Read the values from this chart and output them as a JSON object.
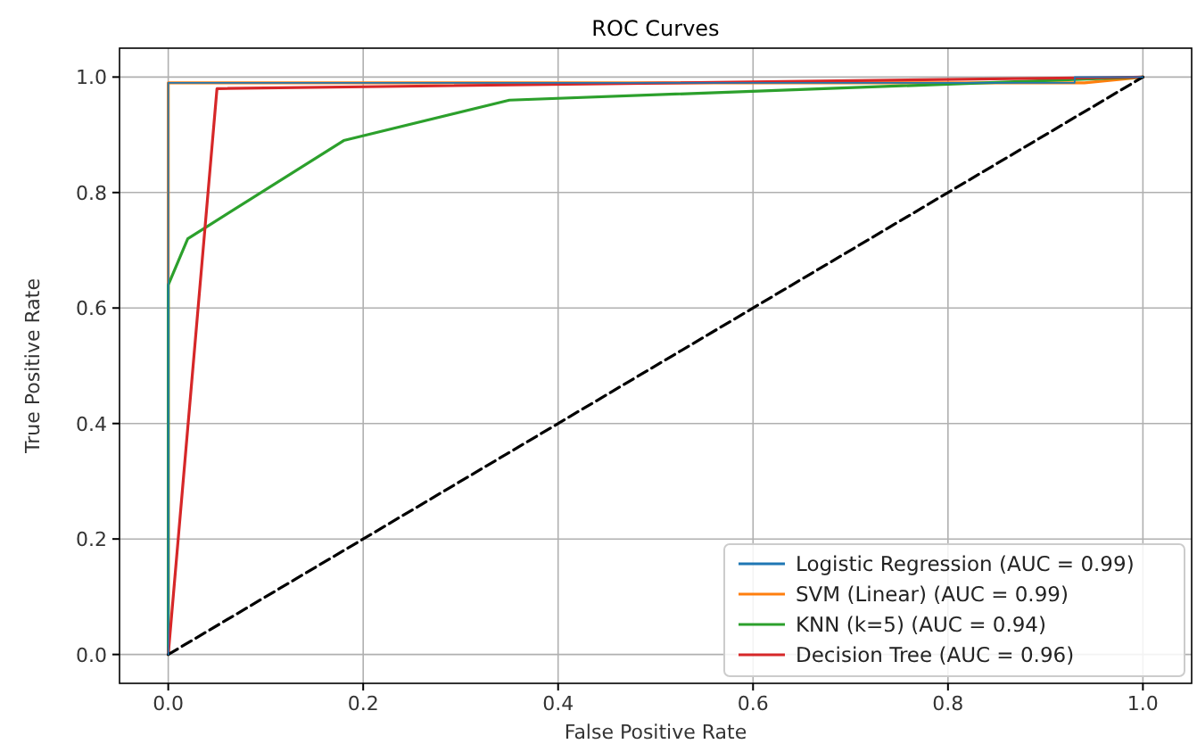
{
  "chart_data": {
    "type": "line",
    "title": "ROC Curves",
    "xlabel": "False Positive Rate",
    "ylabel": "True Positive Rate",
    "xlim": [
      -0.05,
      1.05
    ],
    "ylim": [
      -0.05,
      1.05
    ],
    "xticks": [
      {
        "value": 0,
        "label": "0.0"
      },
      0.2,
      0.4,
      0.6,
      0.8,
      {
        "value": 1,
        "label": "1.0"
      }
    ],
    "yticks": [
      {
        "value": 0,
        "label": "0.0"
      },
      0.2,
      0.4,
      0.6,
      0.8,
      {
        "value": 1,
        "label": "1.0"
      }
    ],
    "grid": true,
    "legend": "bottom right",
    "line_style": "solid",
    "marker": "none",
    "series": [
      {
        "name": "Logistic Regression (AUC = 0.99)",
        "color": "#1f77b4",
        "x": [
          0,
          0,
          0.93,
          0.93,
          1
        ],
        "values": [
          0,
          0.99,
          0.99,
          1,
          1
        ]
      },
      {
        "name": "SVM (Linear) (AUC = 0.99)",
        "color": "#ff7f0e",
        "x": [
          0,
          0,
          0.94,
          1
        ],
        "values": [
          0,
          0.99,
          0.99,
          1
        ]
      },
      {
        "name": "KNN (k=5) (AUC = 0.94)",
        "color": "#2ca02c",
        "x": [
          0,
          0,
          0.02,
          0.18,
          0.35,
          1
        ],
        "values": [
          0,
          0.64,
          0.72,
          0.89,
          0.96,
          1
        ]
      },
      {
        "name": "Decision Tree (AUC = 0.96)",
        "color": "#d62728",
        "x": [
          0,
          0.05,
          1
        ],
        "values": [
          0,
          0.98,
          1
        ]
      },
      {
        "color": "#000000",
        "x": [
          0,
          1
        ],
        "values": [
          0,
          1
        ],
        "line_style": "dashed"
      }
    ]
  }
}
